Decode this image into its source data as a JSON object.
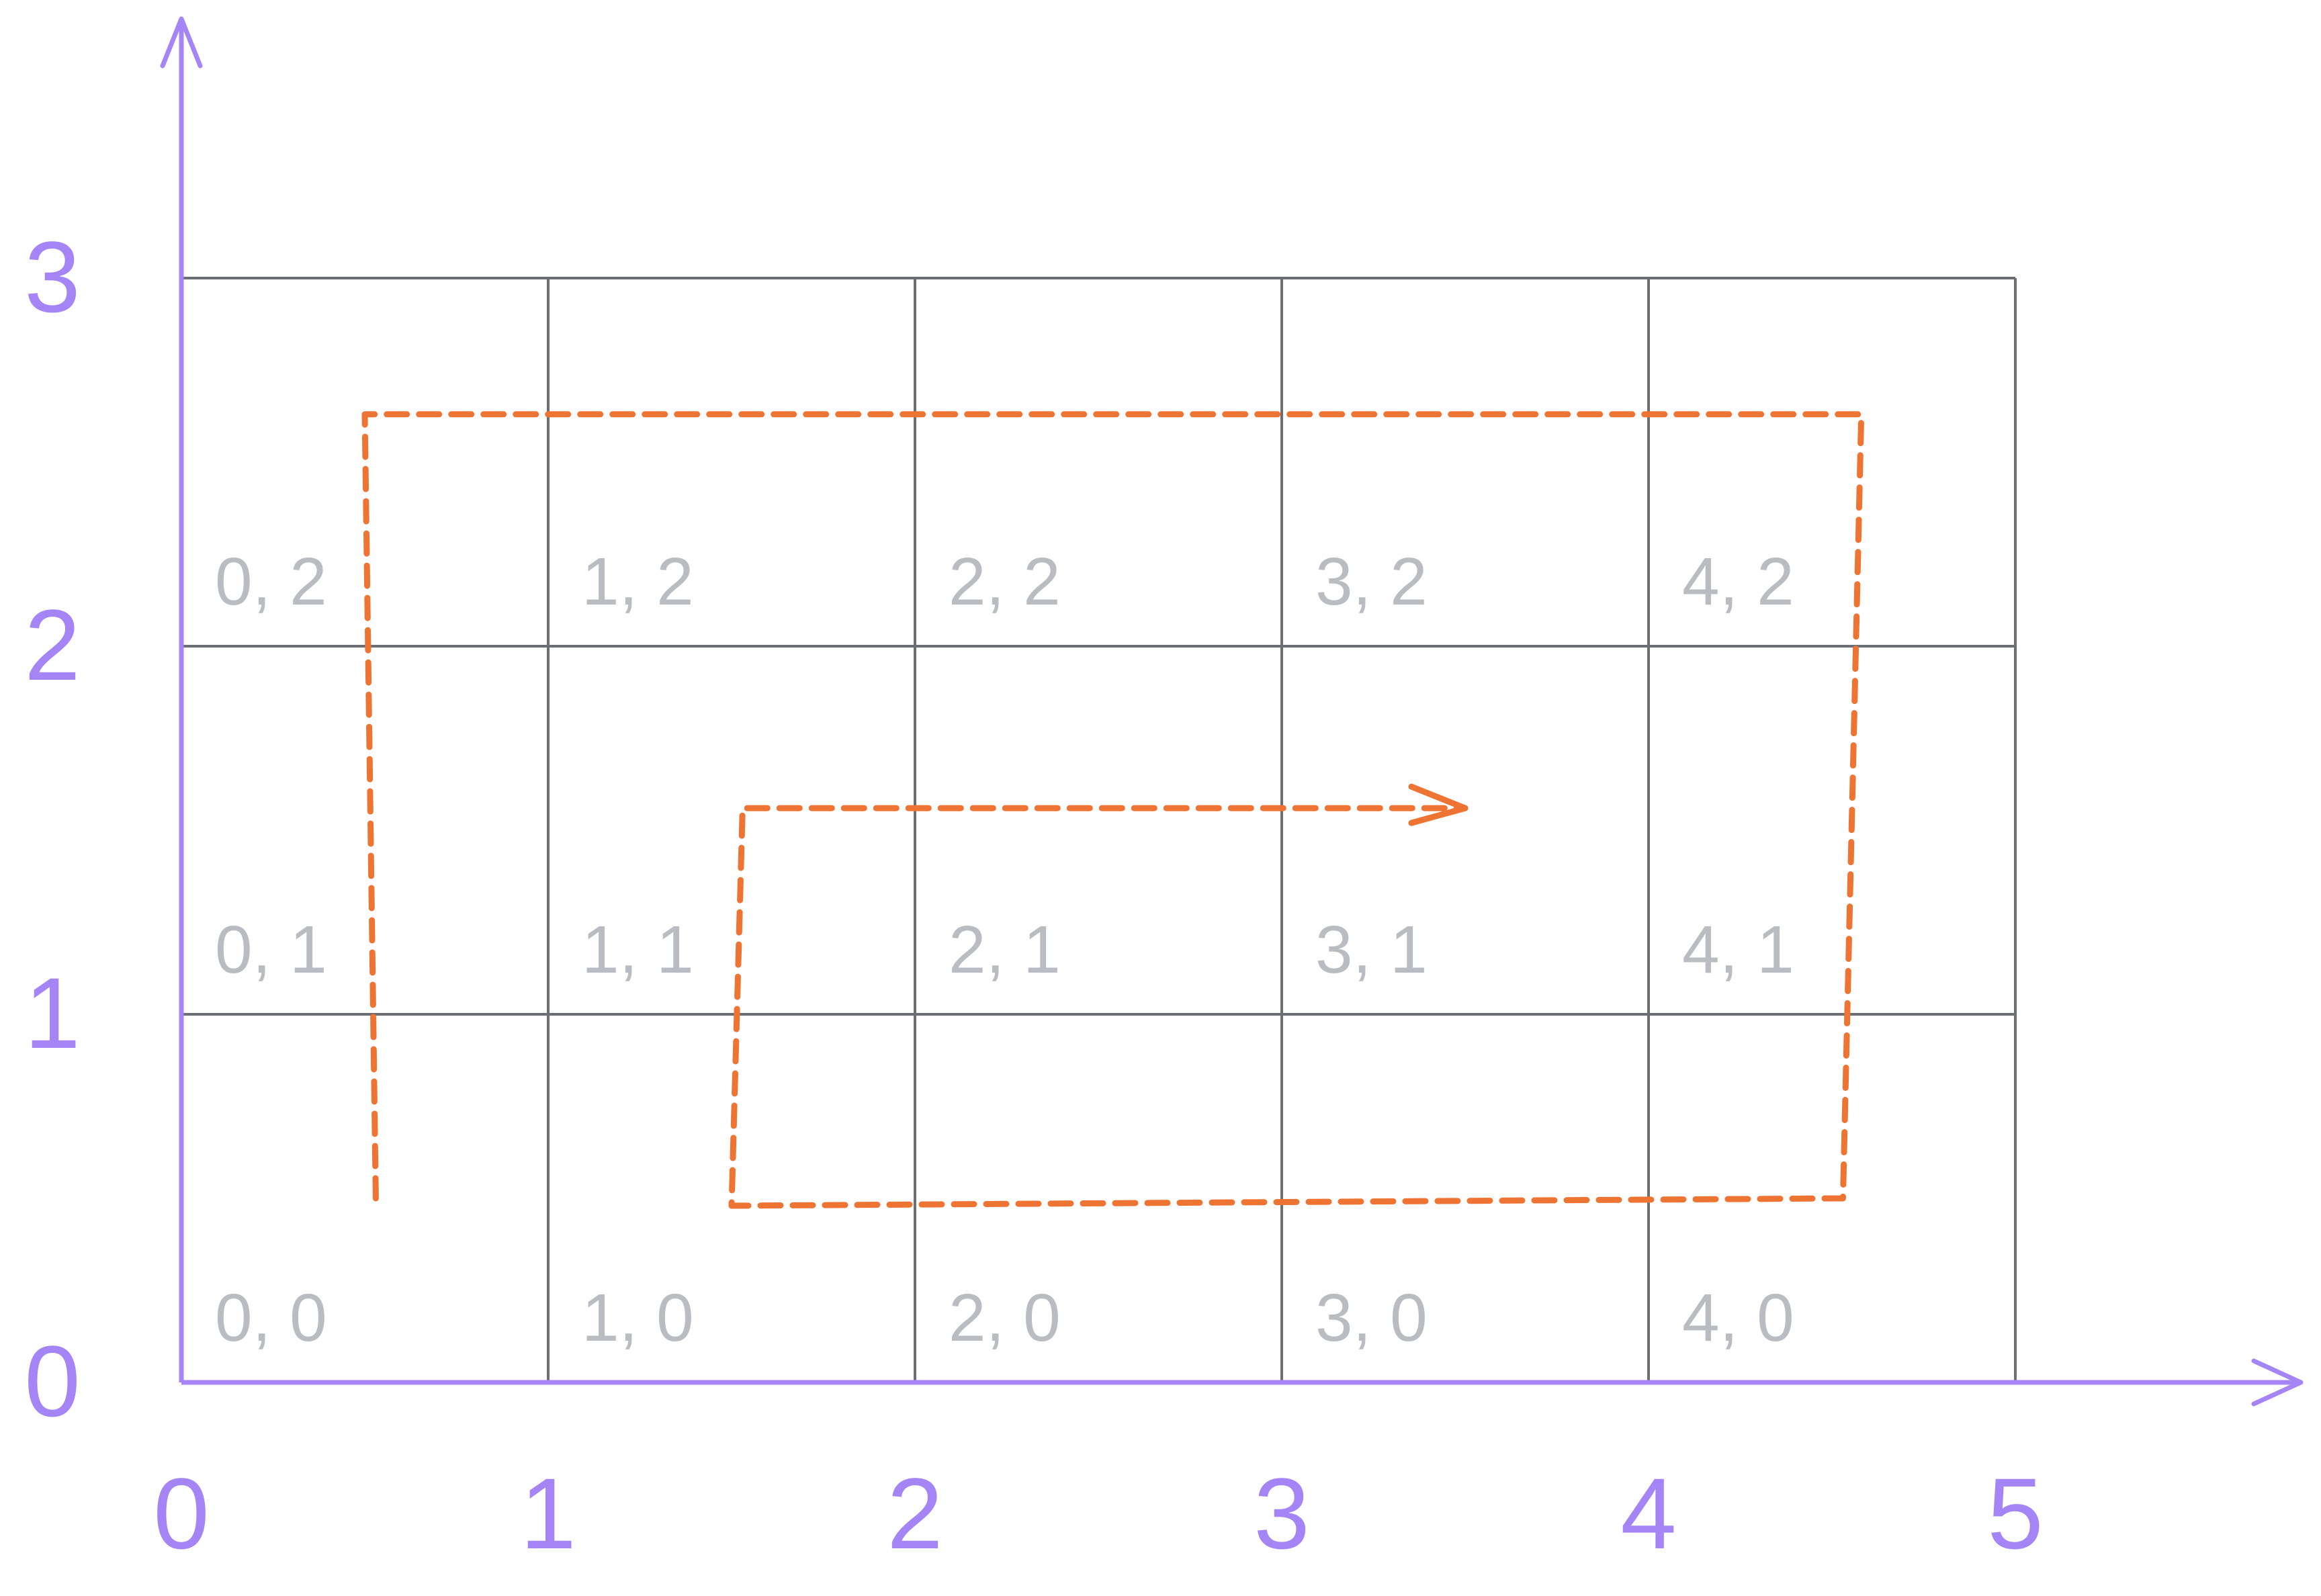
{
  "colors": {
    "axis": "#a585f5",
    "grid": "#6b6f73",
    "cell_label": "#b9bdc2",
    "path": "#ee7433",
    "background": "#ffffff"
  },
  "grid": {
    "columns": 5,
    "rows": 3
  },
  "x_axis": {
    "ticks": [
      "0",
      "1",
      "2",
      "3",
      "4",
      "5"
    ]
  },
  "y_axis": {
    "ticks": [
      "0",
      "1",
      "2",
      "3"
    ]
  },
  "cells": [
    {
      "col": 0,
      "row": 2,
      "label": "0, 2"
    },
    {
      "col": 1,
      "row": 2,
      "label": "1, 2"
    },
    {
      "col": 2,
      "row": 2,
      "label": "2, 2"
    },
    {
      "col": 3,
      "row": 2,
      "label": "3, 2"
    },
    {
      "col": 4,
      "row": 2,
      "label": "4, 2"
    },
    {
      "col": 0,
      "row": 1,
      "label": "0, 1"
    },
    {
      "col": 1,
      "row": 1,
      "label": "1, 1"
    },
    {
      "col": 2,
      "row": 1,
      "label": "2, 1"
    },
    {
      "col": 3,
      "row": 1,
      "label": "3, 1"
    },
    {
      "col": 4,
      "row": 1,
      "label": "4, 1"
    },
    {
      "col": 0,
      "row": 0,
      "label": "0, 0"
    },
    {
      "col": 1,
      "row": 0,
      "label": "1, 0"
    },
    {
      "col": 2,
      "row": 0,
      "label": "2, 0"
    },
    {
      "col": 3,
      "row": 0,
      "label": "3, 0"
    },
    {
      "col": 4,
      "row": 0,
      "label": "4, 0"
    }
  ],
  "spiral_path": [
    [
      0.53,
      0.5
    ],
    [
      0.5,
      2.63
    ],
    [
      4.58,
      2.63
    ],
    [
      4.53,
      0.5
    ],
    [
      1.5,
      0.48
    ],
    [
      1.53,
      1.56
    ],
    [
      3.5,
      1.56
    ]
  ]
}
